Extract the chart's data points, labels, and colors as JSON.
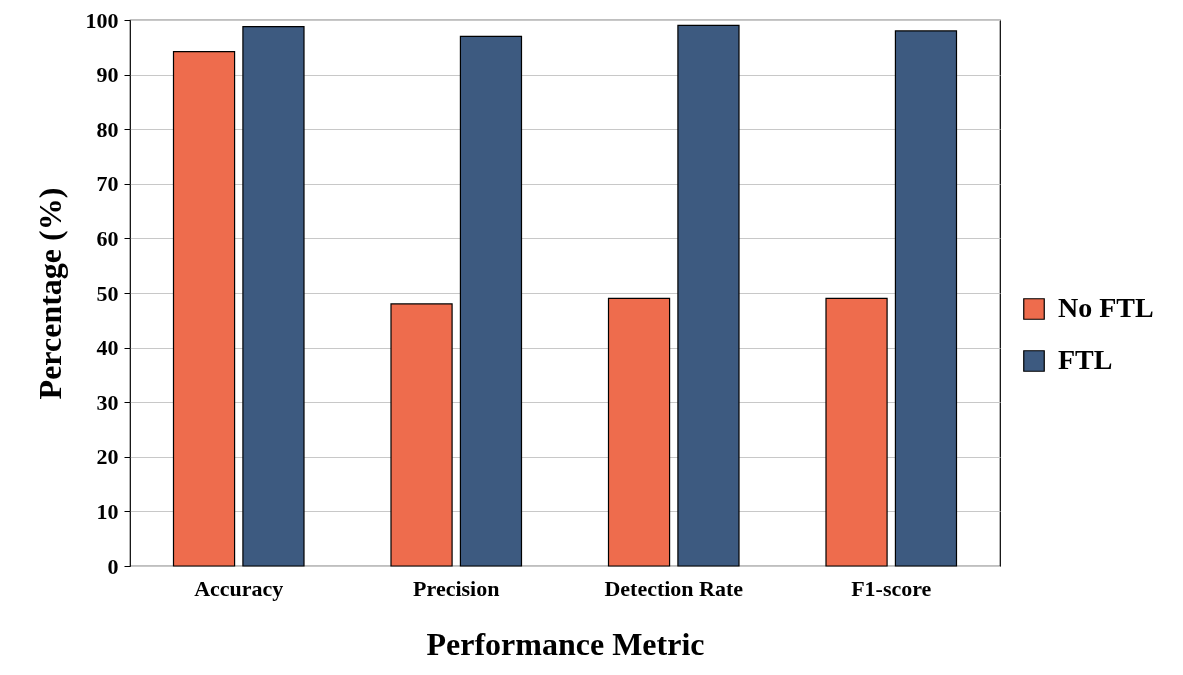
{
  "chart_data": {
    "type": "bar",
    "xlabel": "Performance Metric",
    "ylabel": "Percentage (%)",
    "categories": [
      "Accuracy",
      "Precision",
      "Detection Rate",
      "F1-score"
    ],
    "series": [
      {
        "name": "No FTL",
        "color": "#ee6c4d",
        "values": [
          94.2,
          48,
          49,
          49
        ]
      },
      {
        "name": "FTL",
        "color": "#3d5a80",
        "values": [
          98.8,
          97,
          99,
          98
        ]
      }
    ],
    "ylim": [
      0,
      100
    ],
    "yticks": [
      0,
      10,
      20,
      30,
      40,
      50,
      60,
      70,
      80,
      90,
      100
    ],
    "grid": "y",
    "legend": "right"
  }
}
